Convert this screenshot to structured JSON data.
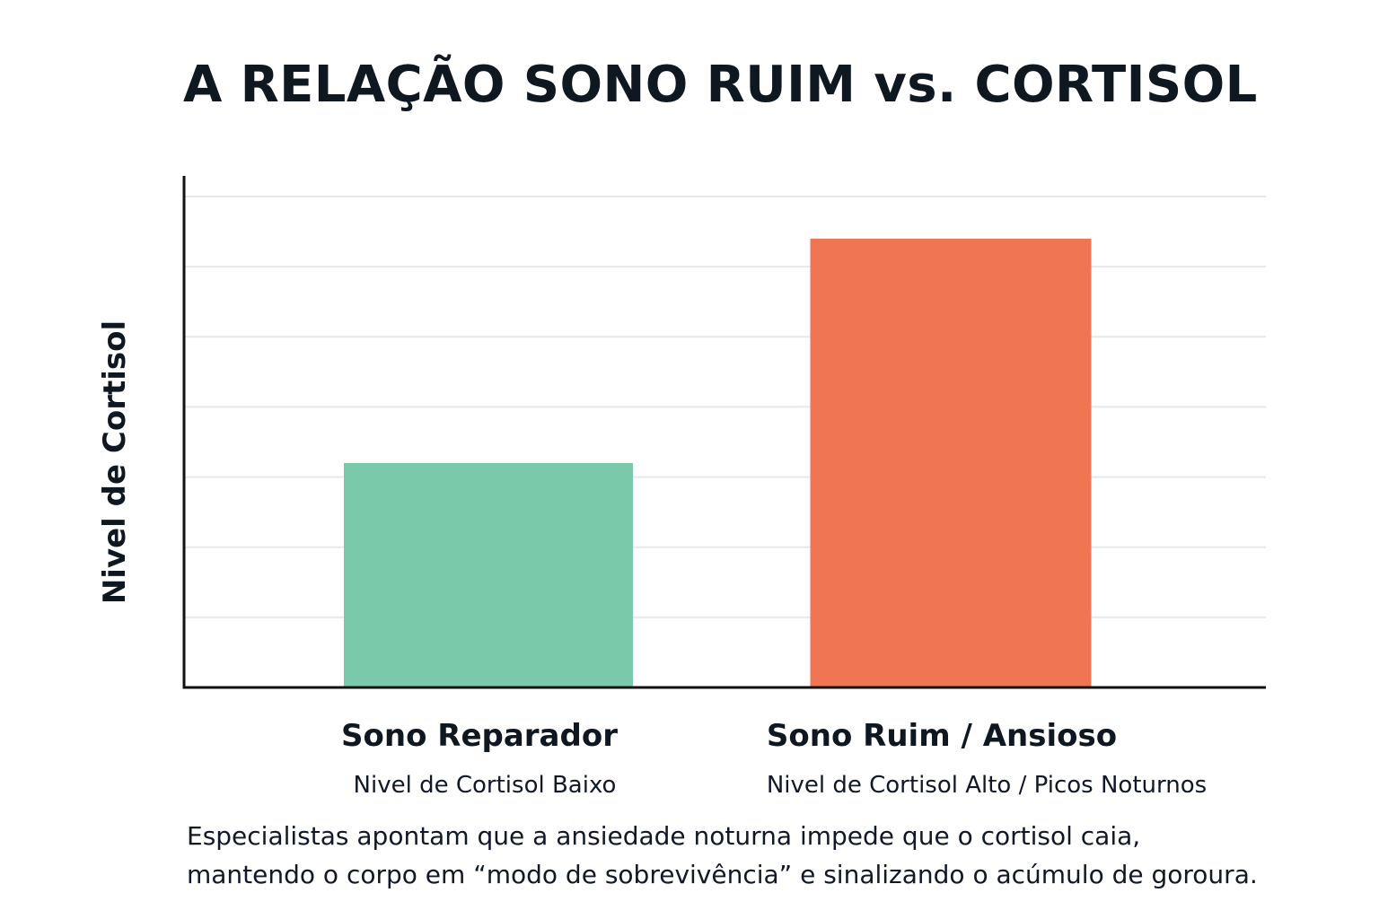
{
  "chart_data": {
    "type": "bar",
    "title": "A RELAÇÃO SONO RUIM vs. CORTISOL",
    "ylabel": "Nivel de Cortisol",
    "xlabel": "",
    "categories": [
      "Sono Reparador",
      "Sono Ruim / Ansioso"
    ],
    "category_subtitles": [
      "Nivel de Cortisol Baixo",
      "Nivel de Cortisol Alto / Picos Noturnos"
    ],
    "values": [
      32,
      64
    ],
    "ylim": [
      0,
      70
    ],
    "y_gridlines": [
      10,
      20,
      30,
      40,
      50,
      60,
      70
    ],
    "grid": true,
    "y_tick_labels_shown": false,
    "colors": [
      "#7ac9aa",
      "#f07552"
    ]
  },
  "note": {
    "line_1": "Especialistas apontam que a ansiedade noturna impede que o cortisol caia,",
    "line_2": "mantendo o corpo em “modo de sobrevivência” e sinalizando o acúmulo de goroura."
  }
}
